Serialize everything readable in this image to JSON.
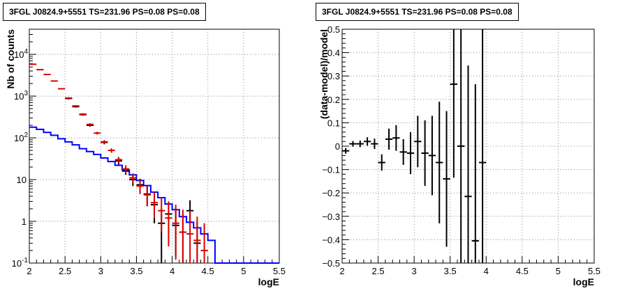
{
  "chart_data": [
    {
      "type": "histogram",
      "title": "3FGL J0824.9+5551 TS=231.96 PS=0.08 PS=0.08",
      "xlabel": "logE",
      "ylabel": "Nb of counts",
      "xlim": [
        2,
        5.5
      ],
      "ylim": [
        0.1,
        40000
      ],
      "yscale": "log",
      "grid": true,
      "x_ticks": [
        "2",
        "2.5",
        "3",
        "3.5",
        "4",
        "4.5",
        "5",
        "5.5"
      ],
      "y_ticks": [
        {
          "value": 0.1,
          "label": "10",
          "exp": "-1"
        },
        {
          "value": 1,
          "label": "1",
          "exp": ""
        },
        {
          "value": 10,
          "label": "10",
          "exp": ""
        },
        {
          "value": 100,
          "label": "10",
          "exp": "2"
        },
        {
          "value": 1000,
          "label": "10",
          "exp": "3"
        },
        {
          "value": 10000,
          "label": "10",
          "exp": "4"
        }
      ],
      "bin_edges": [
        2.0,
        2.1,
        2.2,
        2.3,
        2.4,
        2.5,
        2.6,
        2.7,
        2.8,
        2.9,
        3.0,
        3.1,
        3.2,
        3.3,
        3.4,
        3.5,
        3.6,
        3.7,
        3.8,
        3.9,
        4.0,
        4.1,
        4.2,
        4.3,
        4.4,
        4.5,
        4.6,
        4.7,
        4.8,
        4.9,
        5.0,
        5.1,
        5.2,
        5.3,
        5.4,
        5.5
      ],
      "series": [
        {
          "name": "",
          "style": "step",
          "color": "#0000ff",
          "values": [
            180,
            160,
            135,
            115,
            95,
            80,
            68,
            55,
            47,
            40,
            33,
            27,
            22,
            17,
            13,
            9.5,
            7.2,
            5,
            3.7,
            2.6,
            1.9,
            1.3,
            0.95,
            0.7,
            0.5,
            0.35,
            0.1,
            0.1,
            0.1,
            0.1,
            0.1,
            0.1,
            0.1,
            0.1,
            0.1
          ]
        },
        {
          "name": "",
          "style": "errorbar",
          "color": "#dd0000",
          "x": [
            2.05,
            2.15,
            2.25,
            2.35,
            2.45,
            2.55,
            2.65,
            2.75,
            2.85,
            2.95,
            3.05,
            3.15,
            3.25,
            3.35,
            3.45,
            3.55,
            3.65,
            3.75,
            3.85,
            3.95,
            4.05,
            4.15,
            4.25,
            4.35,
            4.45
          ],
          "y": [
            5800,
            4300,
            3300,
            2300,
            1500,
            900,
            580,
            370,
            210,
            130,
            80,
            50,
            30,
            18,
            11,
            7,
            4.3,
            2.8,
            1.8,
            1.2,
            0.9,
            0.55,
            0.5,
            0.35,
            0.2
          ],
          "ylow": [
            5650,
            4180,
            3200,
            2220,
            1440,
            860,
            550,
            350,
            195,
            120,
            72,
            44,
            25,
            14,
            8,
            4.5,
            2.3,
            1.2,
            0.55,
            0.25,
            0.12,
            0.1,
            0.1,
            0.1,
            0.1
          ],
          "yhigh": [
            5950,
            4420,
            3400,
            2380,
            1560,
            940,
            610,
            390,
            225,
            140,
            88,
            56,
            35,
            22,
            14,
            10,
            7,
            5,
            3.8,
            3,
            2.5,
            1.9,
            1.8,
            1.3,
            0.9
          ]
        },
        {
          "name": "",
          "style": "errorbar",
          "color": "#000000",
          "x": [
            2.55,
            2.65,
            2.75,
            2.85,
            3.05,
            3.25,
            3.35,
            3.45,
            3.55,
            3.65,
            3.75,
            3.85,
            3.95,
            4.05,
            4.15,
            4.25,
            4.35
          ],
          "y": [
            880,
            560,
            360,
            200,
            78,
            28,
            16,
            10,
            7.5,
            4.5,
            2.5,
            0.9,
            1.5,
            0.8,
            0.55,
            1.8,
            0.3
          ],
          "ylow": [
            830,
            530,
            340,
            186,
            70,
            23,
            13,
            7,
            5,
            2.3,
            0.9,
            0.1,
            0.5,
            0.15,
            0.1,
            0.9,
            0.1
          ],
          "yhigh": [
            930,
            590,
            380,
            214,
            86,
            33,
            20,
            13,
            10.5,
            7,
            4.5,
            2,
            3,
            2,
            1.5,
            3.2,
            1
          ]
        }
      ]
    },
    {
      "type": "scatter",
      "title": "3FGL J0824.9+5551 TS=231.96 PS=0.08 PS=0.08",
      "xlabel": "logE",
      "ylabel": "(data-model)/model",
      "xlim": [
        2,
        5.5
      ],
      "ylim": [
        -0.5,
        0.5
      ],
      "grid": true,
      "x_ticks": [
        "2",
        "2.5",
        "3",
        "3.5",
        "4",
        "4.5",
        "5",
        "5.5"
      ],
      "y_ticks": [
        "−0.5",
        "−0.4",
        "−0.3",
        "−0.2",
        "−0.1",
        "0",
        "0.1",
        "0.2",
        "0.3",
        "0.4",
        "0.5"
      ],
      "series": [
        {
          "name": "",
          "color": "#000000",
          "x": [
            2.05,
            2.15,
            2.25,
            2.35,
            2.45,
            2.55,
            2.65,
            2.75,
            2.85,
            2.95,
            3.05,
            3.15,
            3.25,
            3.35,
            3.45,
            3.55,
            3.65,
            3.75,
            3.85,
            3.95
          ],
          "y": [
            -0.02,
            0.01,
            0.01,
            0.02,
            0.01,
            -0.07,
            0.03,
            0.035,
            -0.025,
            -0.03,
            0.02,
            -0.03,
            -0.04,
            -0.07,
            -0.14,
            0.265,
            0.0,
            -0.215,
            -0.405,
            -0.07
          ],
          "err": [
            0.012,
            0.012,
            0.014,
            0.018,
            0.022,
            0.035,
            0.045,
            0.055,
            0.055,
            0.09,
            0.11,
            0.14,
            0.17,
            0.26,
            0.29,
            0.4,
            0.8,
            0.56,
            0.67,
            1.2
          ]
        }
      ]
    }
  ]
}
